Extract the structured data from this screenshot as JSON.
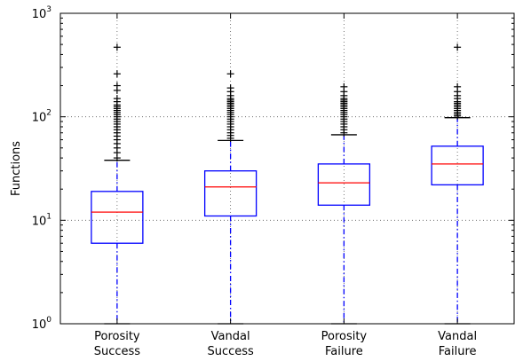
{
  "chart_data": {
    "type": "boxplot",
    "title": "",
    "xlabel": "",
    "ylabel": "Functions",
    "yscale": "log",
    "ylim": [
      1,
      1000
    ],
    "yticks": [
      {
        "base": "10",
        "exp": "0"
      },
      {
        "base": "10",
        "exp": "1"
      },
      {
        "base": "10",
        "exp": "2"
      },
      {
        "base": "10",
        "exp": "3"
      }
    ],
    "grid": true,
    "categories": [
      [
        "Porosity",
        "Success"
      ],
      [
        "Vandal",
        "Success"
      ],
      [
        "Porosity",
        "Failure"
      ],
      [
        "Vandal",
        "Failure"
      ]
    ],
    "boxes": [
      {
        "whisker_low": 1,
        "q1": 6,
        "median": 12,
        "q3": 19,
        "whisker_high": 38,
        "outliers": [
          40,
          45,
          50,
          55,
          60,
          65,
          70,
          75,
          80,
          85,
          90,
          95,
          100,
          105,
          110,
          115,
          120,
          125,
          130,
          140,
          150,
          180,
          200,
          260,
          470
        ]
      },
      {
        "whisker_low": 1,
        "q1": 11,
        "median": 21,
        "q3": 30,
        "whisker_high": 59,
        "outliers": [
          62,
          66,
          70,
          75,
          80,
          85,
          90,
          95,
          100,
          105,
          110,
          115,
          120,
          125,
          130,
          135,
          140,
          145,
          150,
          160,
          175,
          190,
          260
        ]
      },
      {
        "whisker_low": 1,
        "q1": 14,
        "median": 23,
        "q3": 35,
        "whisker_high": 67,
        "outliers": [
          70,
          75,
          80,
          85,
          90,
          95,
          100,
          105,
          110,
          115,
          120,
          125,
          130,
          135,
          140,
          145,
          150,
          160,
          175,
          195
        ]
      },
      {
        "whisker_low": 1,
        "q1": 22,
        "median": 35,
        "q3": 52,
        "whisker_high": 98,
        "outliers": [
          102,
          106,
          110,
          115,
          120,
          125,
          130,
          135,
          140,
          150,
          160,
          175,
          195,
          470
        ]
      }
    ],
    "colors": {
      "box": "#0000ff",
      "median": "#ff0000",
      "whisker": "#0000ff",
      "caps": "#000000",
      "outlier": "#000000",
      "grid": "#555555"
    }
  }
}
